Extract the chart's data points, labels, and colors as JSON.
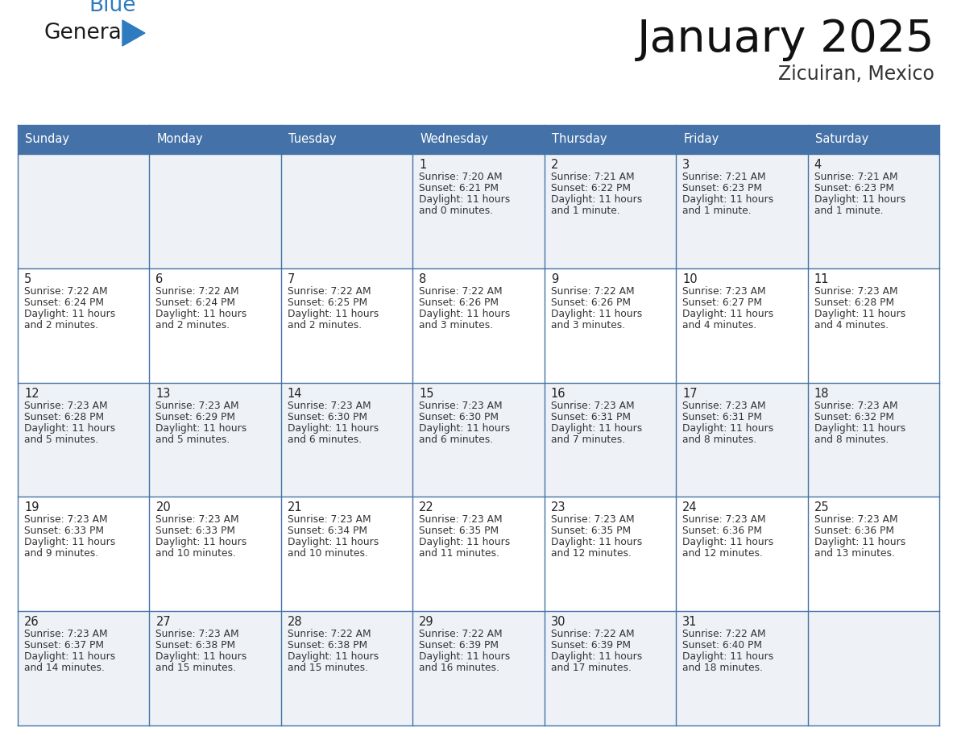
{
  "title": "January 2025",
  "subtitle": "Zicuiran, Mexico",
  "days_of_week": [
    "Sunday",
    "Monday",
    "Tuesday",
    "Wednesday",
    "Thursday",
    "Friday",
    "Saturday"
  ],
  "header_bg": "#4472a8",
  "header_text": "#ffffff",
  "cell_bg_odd": "#eef2f7",
  "cell_bg_even": "#ffffff",
  "grid_color": "#4472a8",
  "text_color": "#333333",
  "day_num_color": "#222222",
  "calendar_data": [
    [
      {
        "day": "",
        "sunrise": "",
        "sunset": "",
        "daylight": ""
      },
      {
        "day": "",
        "sunrise": "",
        "sunset": "",
        "daylight": ""
      },
      {
        "day": "",
        "sunrise": "",
        "sunset": "",
        "daylight": ""
      },
      {
        "day": "1",
        "sunrise": "7:20 AM",
        "sunset": "6:21 PM",
        "daylight": "and 0 minutes."
      },
      {
        "day": "2",
        "sunrise": "7:21 AM",
        "sunset": "6:22 PM",
        "daylight": "and 1 minute."
      },
      {
        "day": "3",
        "sunrise": "7:21 AM",
        "sunset": "6:23 PM",
        "daylight": "and 1 minute."
      },
      {
        "day": "4",
        "sunrise": "7:21 AM",
        "sunset": "6:23 PM",
        "daylight": "and 1 minute."
      }
    ],
    [
      {
        "day": "5",
        "sunrise": "7:22 AM",
        "sunset": "6:24 PM",
        "daylight": "and 2 minutes."
      },
      {
        "day": "6",
        "sunrise": "7:22 AM",
        "sunset": "6:24 PM",
        "daylight": "and 2 minutes."
      },
      {
        "day": "7",
        "sunrise": "7:22 AM",
        "sunset": "6:25 PM",
        "daylight": "and 2 minutes."
      },
      {
        "day": "8",
        "sunrise": "7:22 AM",
        "sunset": "6:26 PM",
        "daylight": "and 3 minutes."
      },
      {
        "day": "9",
        "sunrise": "7:22 AM",
        "sunset": "6:26 PM",
        "daylight": "and 3 minutes."
      },
      {
        "day": "10",
        "sunrise": "7:23 AM",
        "sunset": "6:27 PM",
        "daylight": "and 4 minutes."
      },
      {
        "day": "11",
        "sunrise": "7:23 AM",
        "sunset": "6:28 PM",
        "daylight": "and 4 minutes."
      }
    ],
    [
      {
        "day": "12",
        "sunrise": "7:23 AM",
        "sunset": "6:28 PM",
        "daylight": "and 5 minutes."
      },
      {
        "day": "13",
        "sunrise": "7:23 AM",
        "sunset": "6:29 PM",
        "daylight": "and 5 minutes."
      },
      {
        "day": "14",
        "sunrise": "7:23 AM",
        "sunset": "6:30 PM",
        "daylight": "and 6 minutes."
      },
      {
        "day": "15",
        "sunrise": "7:23 AM",
        "sunset": "6:30 PM",
        "daylight": "and 6 minutes."
      },
      {
        "day": "16",
        "sunrise": "7:23 AM",
        "sunset": "6:31 PM",
        "daylight": "and 7 minutes."
      },
      {
        "day": "17",
        "sunrise": "7:23 AM",
        "sunset": "6:31 PM",
        "daylight": "and 8 minutes."
      },
      {
        "day": "18",
        "sunrise": "7:23 AM",
        "sunset": "6:32 PM",
        "daylight": "and 8 minutes."
      }
    ],
    [
      {
        "day": "19",
        "sunrise": "7:23 AM",
        "sunset": "6:33 PM",
        "daylight": "and 9 minutes."
      },
      {
        "day": "20",
        "sunrise": "7:23 AM",
        "sunset": "6:33 PM",
        "daylight": "and 10 minutes."
      },
      {
        "day": "21",
        "sunrise": "7:23 AM",
        "sunset": "6:34 PM",
        "daylight": "and 10 minutes."
      },
      {
        "day": "22",
        "sunrise": "7:23 AM",
        "sunset": "6:35 PM",
        "daylight": "and 11 minutes."
      },
      {
        "day": "23",
        "sunrise": "7:23 AM",
        "sunset": "6:35 PM",
        "daylight": "and 12 minutes."
      },
      {
        "day": "24",
        "sunrise": "7:23 AM",
        "sunset": "6:36 PM",
        "daylight": "and 12 minutes."
      },
      {
        "day": "25",
        "sunrise": "7:23 AM",
        "sunset": "6:36 PM",
        "daylight": "and 13 minutes."
      }
    ],
    [
      {
        "day": "26",
        "sunrise": "7:23 AM",
        "sunset": "6:37 PM",
        "daylight": "and 14 minutes."
      },
      {
        "day": "27",
        "sunrise": "7:23 AM",
        "sunset": "6:38 PM",
        "daylight": "and 15 minutes."
      },
      {
        "day": "28",
        "sunrise": "7:22 AM",
        "sunset": "6:38 PM",
        "daylight": "and 15 minutes."
      },
      {
        "day": "29",
        "sunrise": "7:22 AM",
        "sunset": "6:39 PM",
        "daylight": "and 16 minutes."
      },
      {
        "day": "30",
        "sunrise": "7:22 AM",
        "sunset": "6:39 PM",
        "daylight": "and 17 minutes."
      },
      {
        "day": "31",
        "sunrise": "7:22 AM",
        "sunset": "6:40 PM",
        "daylight": "and 18 minutes."
      },
      {
        "day": "",
        "sunrise": "",
        "sunset": "",
        "daylight": ""
      }
    ]
  ],
  "logo_color_general": "#1a1a1a",
  "logo_color_blue": "#2e7bbf"
}
